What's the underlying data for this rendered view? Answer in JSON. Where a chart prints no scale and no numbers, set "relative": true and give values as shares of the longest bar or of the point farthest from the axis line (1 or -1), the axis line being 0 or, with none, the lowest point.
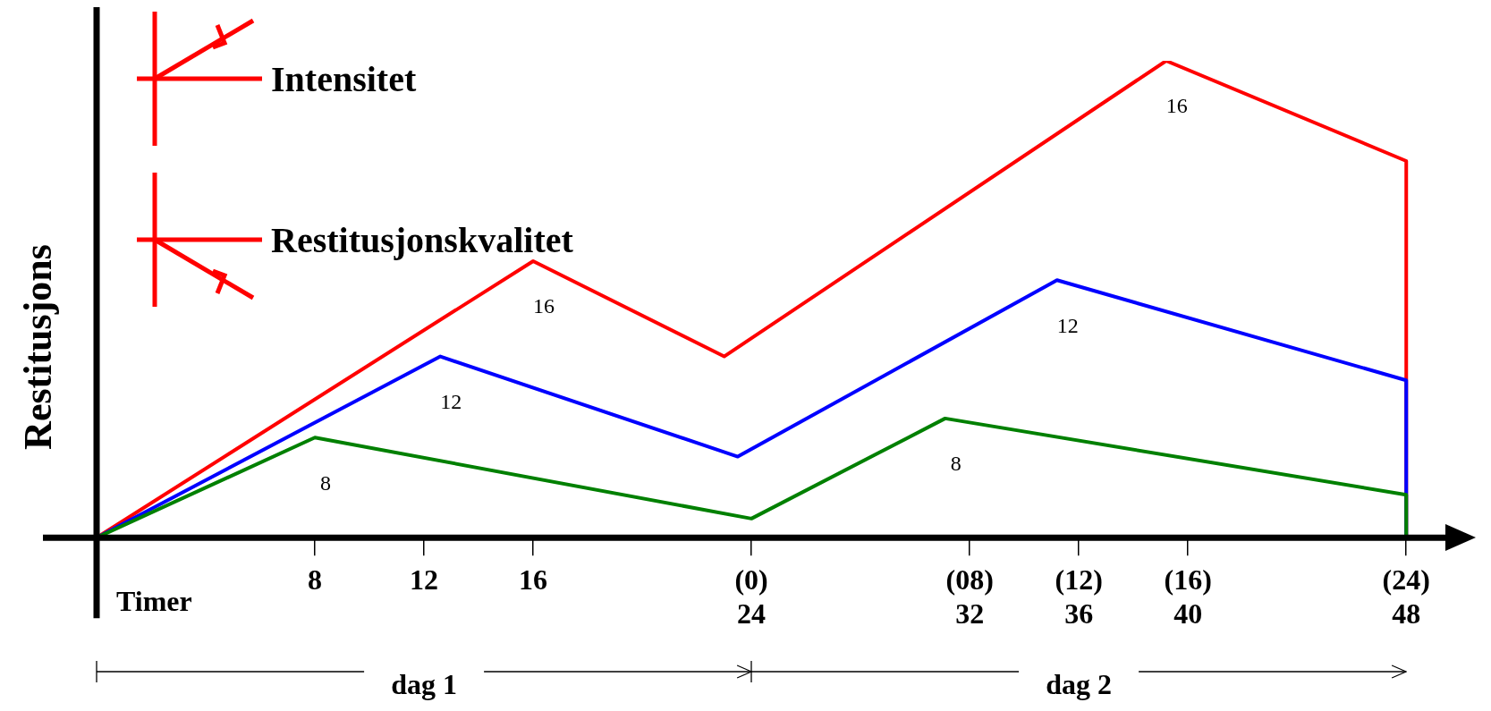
{
  "chart_data": {
    "type": "line",
    "relative": true,
    "ylabel": "Restitusjons",
    "xlabel": "Timer",
    "xlim": [
      0,
      49.5
    ],
    "xticks": [
      {
        "value": 8,
        "label": "8"
      },
      {
        "value": 12,
        "label": "12"
      },
      {
        "value": 16,
        "label": "16"
      },
      {
        "value": 24,
        "label": "(0)\n24"
      },
      {
        "value": 32,
        "label": "(08)\n32"
      },
      {
        "value": 36,
        "label": "(12)\n36"
      },
      {
        "value": 40,
        "label": "(16)\n40"
      },
      {
        "value": 48,
        "label": "(24)\n48"
      }
    ],
    "series": [
      {
        "name": "8",
        "color": "#008000",
        "x": [
          0,
          8,
          24,
          31.1,
          48,
          48
        ],
        "values": [
          0,
          0.21,
          0.04,
          0.25,
          0.09,
          0
        ]
      },
      {
        "name": "12",
        "color": "#0000ff",
        "x": [
          0,
          12.6,
          23.5,
          35.2,
          48,
          48
        ],
        "values": [
          0,
          0.38,
          0.17,
          0.54,
          0.33,
          0
        ]
      },
      {
        "name": "16",
        "color": "#ff0000",
        "x": [
          0,
          16,
          23,
          39.2,
          48,
          48
        ],
        "values": [
          0,
          0.58,
          0.38,
          1,
          0.79,
          0
        ]
      }
    ],
    "annotations": [
      "Intensitet",
      "Restitusjonskvalitet",
      "dag 1",
      "dag 2"
    ],
    "grid": false,
    "legend": false,
    "marker": "none",
    "line_style": "solid"
  }
}
